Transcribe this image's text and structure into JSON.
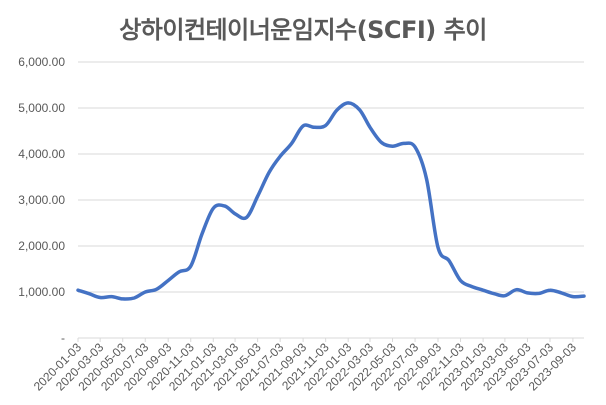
{
  "chart_data": {
    "type": "line",
    "title": "상하이컨테이너운임지수(SCFI) 추이",
    "xlabel": "",
    "ylabel": "",
    "ylim": [
      0,
      6000
    ],
    "y_ticks": [
      "-",
      "1,000.00",
      "2,000.00",
      "3,000.00",
      "4,000.00",
      "5,000.00",
      "6,000.00"
    ],
    "x_ticks": [
      "2020-01-03",
      "2020-03-03",
      "2020-05-03",
      "2020-07-03",
      "2020-09-03",
      "2020-11-03",
      "2021-01-03",
      "2021-03-03",
      "2021-05-03",
      "2021-07-03",
      "2021-09-03",
      "2021-11-03",
      "2022-01-03",
      "2022-03-03",
      "2022-05-03",
      "2022-07-03",
      "2022-09-03",
      "2022-11-03",
      "2023-01-03",
      "2023-03-03",
      "2023-05-03",
      "2023-07-03",
      "2023-09-03"
    ],
    "grid": true,
    "line_color": "#4472C4",
    "series": [
      {
        "x": [
          "2020-01-03",
          "2020-02-03",
          "2020-03-03",
          "2020-04-03",
          "2020-05-03",
          "2020-06-03",
          "2020-07-03",
          "2020-08-03",
          "2020-09-03",
          "2020-10-03",
          "2020-11-03",
          "2020-12-03",
          "2021-01-03",
          "2021-02-03",
          "2021-03-03",
          "2021-04-03",
          "2021-05-03",
          "2021-06-03",
          "2021-07-03",
          "2021-08-03",
          "2021-09-03",
          "2021-10-03",
          "2021-11-03",
          "2021-12-03",
          "2022-01-03",
          "2022-02-03",
          "2022-03-03",
          "2022-04-03",
          "2022-05-03",
          "2022-06-03",
          "2022-07-03",
          "2022-08-03",
          "2022-09-03",
          "2022-10-03",
          "2022-11-03",
          "2022-12-03",
          "2023-01-03",
          "2023-02-03",
          "2023-03-03",
          "2023-04-03",
          "2023-05-03",
          "2023-06-03",
          "2023-07-03",
          "2023-08-03",
          "2023-09-03",
          "2023-10-03"
        ],
        "values": [
          1040,
          960,
          880,
          900,
          850,
          870,
          1000,
          1060,
          1250,
          1440,
          1560,
          2250,
          2820,
          2870,
          2700,
          2620,
          3080,
          3600,
          3950,
          4230,
          4610,
          4580,
          4620,
          4950,
          5110,
          4960,
          4580,
          4250,
          4170,
          4230,
          4150,
          3460,
          1970,
          1680,
          1250,
          1120,
          1040,
          960,
          920,
          1050,
          980,
          970,
          1040,
          980,
          900,
          910
        ]
      }
    ]
  }
}
